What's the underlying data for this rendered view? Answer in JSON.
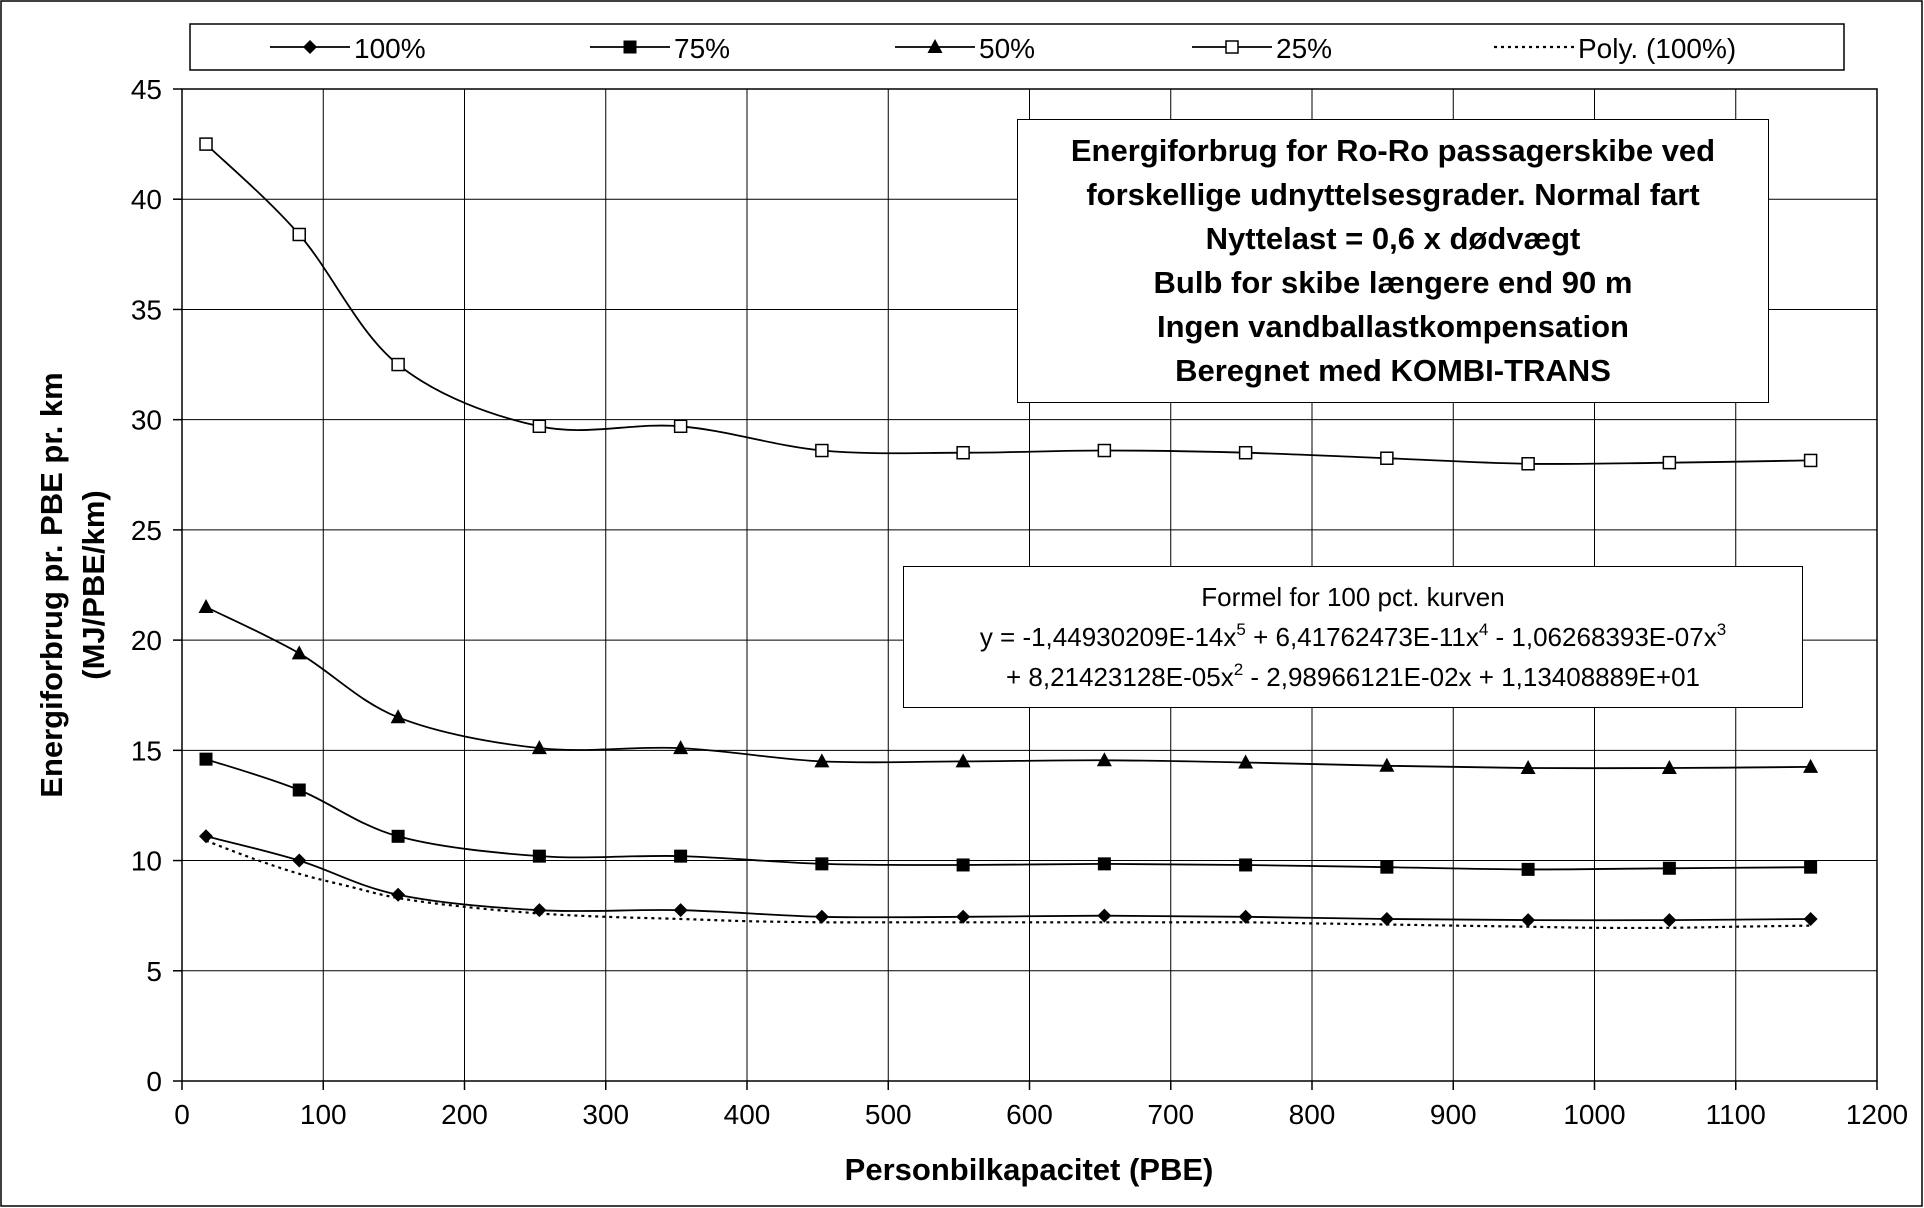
{
  "chart_data": {
    "type": "line",
    "title_lines": [
      "Energiforbrug for Ro-Ro passagerskibe ved",
      "forskellige udnyttelsesgrader. Normal fart",
      "Nyttelast = 0,6 x dødvægt",
      "Bulb for skibe længere end 90 m",
      "Ingen vandballastkompensation",
      "Beregnet med KOMBI-TRANS"
    ],
    "xlabel": "Personbilkapacitet (PBE)",
    "ylabel_lines": [
      "Energiforbrug pr. PBE pr. km",
      "(MJ/PBE/km)"
    ],
    "xlim": [
      0,
      1200
    ],
    "ylim": [
      0,
      45
    ],
    "xticks": [
      0,
      100,
      200,
      300,
      400,
      500,
      600,
      700,
      800,
      900,
      1000,
      1100,
      1200
    ],
    "yticks": [
      0,
      5,
      10,
      15,
      20,
      25,
      30,
      35,
      40,
      45
    ],
    "grid": true,
    "legend_position": "top",
    "x": [
      17,
      83,
      153,
      253,
      353,
      453,
      553,
      653,
      753,
      853,
      953,
      1053,
      1153
    ],
    "series": [
      {
        "name": "100%",
        "marker": "diamond",
        "line": "solid",
        "values": [
          11.1,
          10.0,
          8.45,
          7.75,
          7.75,
          7.45,
          7.45,
          7.5,
          7.45,
          7.35,
          7.3,
          7.3,
          7.35
        ]
      },
      {
        "name": "75%",
        "marker": "square-filled",
        "line": "solid",
        "values": [
          14.6,
          13.2,
          11.1,
          10.2,
          10.2,
          9.85,
          9.8,
          9.85,
          9.8,
          9.7,
          9.6,
          9.65,
          9.7
        ]
      },
      {
        "name": "50%",
        "marker": "triangle",
        "line": "solid",
        "values": [
          21.5,
          19.4,
          16.5,
          15.1,
          15.1,
          14.5,
          14.5,
          14.55,
          14.45,
          14.3,
          14.2,
          14.2,
          14.25
        ]
      },
      {
        "name": "25%",
        "marker": "square-open",
        "line": "solid",
        "values": [
          42.5,
          38.4,
          32.5,
          29.7,
          29.7,
          28.6,
          28.5,
          28.6,
          28.5,
          28.25,
          28.0,
          28.05,
          28.15
        ]
      },
      {
        "name": "Poly. (100%)",
        "marker": "none",
        "line": "dotted",
        "x": [
          17,
          50,
          83,
          120,
          153,
          200,
          253,
          300,
          353,
          400,
          453,
          500,
          553,
          600,
          653,
          700,
          753,
          800,
          853,
          900,
          953,
          1000,
          1053,
          1100,
          1153
        ],
        "values": [
          10.9,
          10.1,
          9.4,
          8.8,
          8.3,
          7.9,
          7.6,
          7.45,
          7.35,
          7.25,
          7.2,
          7.2,
          7.2,
          7.2,
          7.2,
          7.2,
          7.2,
          7.15,
          7.1,
          7.05,
          7.0,
          6.95,
          6.95,
          7.0,
          7.05
        ]
      }
    ],
    "annotations": [
      {
        "lines": [
          "Formel for 100 pct. kurven",
          "y = -1,44930209E-14x5 + 6,41762473E-11x4 - 1,06268393E-07x3",
          "+ 8,21423128E-05x2 - 2,98966121E-02x + 1,13408889E+01"
        ]
      }
    ]
  },
  "formula": {
    "heading": "Formel for 100 pct. kurven",
    "l1_a": "y = -1,44930209E-14x",
    "l1_e1": "5",
    "l1_b": " + 6,41762473E-11x",
    "l1_e2": "4",
    "l1_c": " - 1,06268393E-07x",
    "l1_e3": "3",
    "l2_a": "+ 8,21423128E-05x",
    "l2_e1": "2",
    "l2_b": " - 2,98966121E-02x + 1,13408889E+01"
  }
}
